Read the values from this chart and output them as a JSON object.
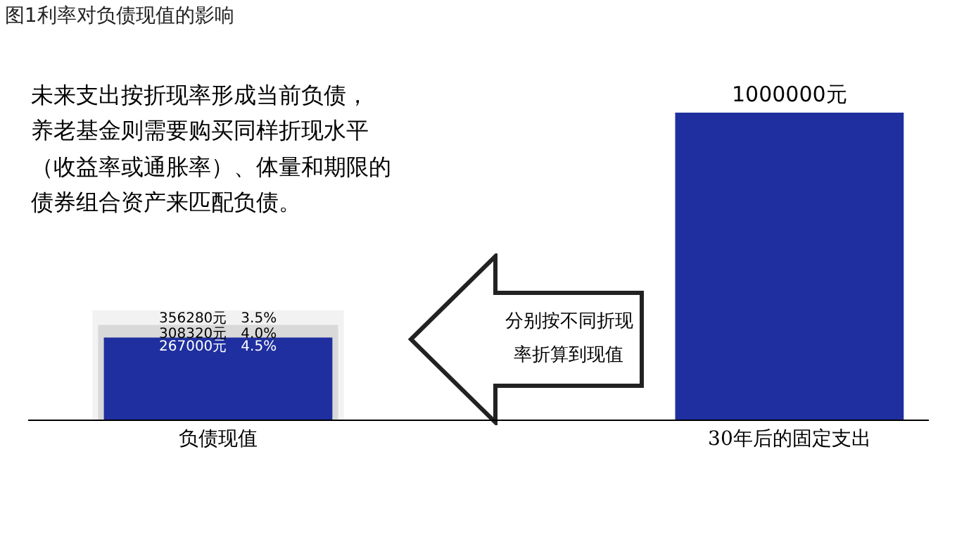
{
  "chart_data": {
    "type": "bar",
    "title": "图1利率对负债现值的影响",
    "categories": [
      "负债现值",
      "30年后的固定支出"
    ],
    "series": [
      {
        "color": "#f2f2f2",
        "values": [
          356280,
          null
        ],
        "value_labels": [
          "356280元　3.5%",
          null
        ]
      },
      {
        "color": "#d9d9d9",
        "values": [
          308320,
          null
        ],
        "value_labels": [
          "308320元　4.0%",
          null
        ]
      },
      {
        "color": "#1f2f9f",
        "values": [
          267000,
          1000000
        ],
        "value_labels": [
          "267000元　4.5%",
          "1000000元"
        ]
      }
    ],
    "annotations": [
      "未来支出按折现率形成当前负债，",
      "养老基金则需要购买同样折现水平",
      "（收益率或通胀率）、体量和期限的",
      "债券组合资产来匹配负债。",
      "分别按不同折现",
      "率折算到现值"
    ]
  }
}
